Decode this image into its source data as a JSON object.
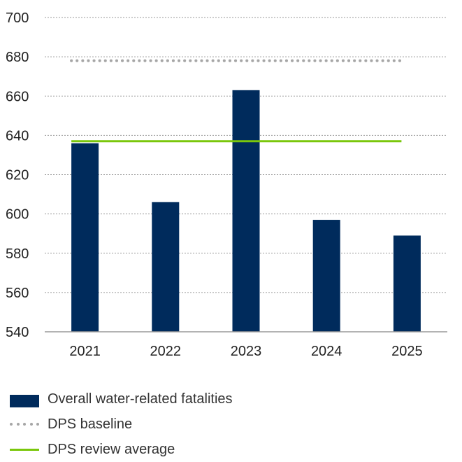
{
  "chart_data": {
    "type": "bar",
    "categories": [
      "2021",
      "2022",
      "2023",
      "2024",
      "2025"
    ],
    "series": [
      {
        "name": "Overall water-related fatalities",
        "values": [
          636,
          606,
          663,
          597,
          589
        ],
        "color": "#002b5c"
      }
    ],
    "reference_lines": [
      {
        "name": "DPS baseline",
        "value": 678,
        "style": "dotted",
        "color": "#a6a6a6"
      },
      {
        "name": "DPS review average",
        "value": 637,
        "style": "solid",
        "color": "#7ac70c"
      }
    ],
    "ylim": [
      540,
      700
    ],
    "yticks": [
      540,
      560,
      580,
      600,
      620,
      640,
      660,
      680,
      700
    ],
    "grid": true,
    "legend_position": "bottom-left",
    "title": "",
    "xlabel": "",
    "ylabel": ""
  }
}
